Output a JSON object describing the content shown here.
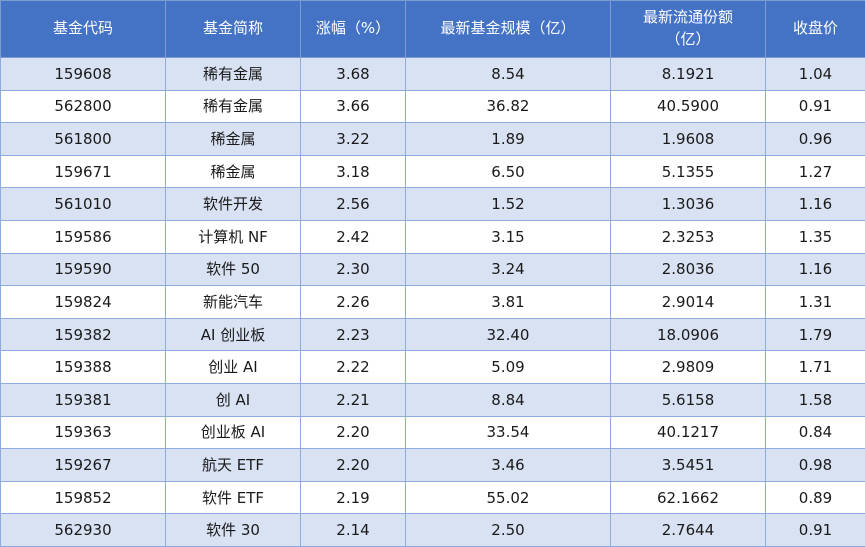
{
  "chart_data": {
    "type": "table",
    "columns": [
      "基金代码",
      "基金简称",
      "涨幅（%）",
      "最新基金规模（亿）",
      "最新流通份额\n（亿）",
      "收盘价"
    ],
    "rows": [
      [
        "159608",
        "稀有金属",
        "3.68",
        "8.54",
        "8.1921",
        "1.04"
      ],
      [
        "562800",
        "稀有金属",
        "3.66",
        "36.82",
        "40.5900",
        "0.91"
      ],
      [
        "561800",
        "稀金属",
        "3.22",
        "1.89",
        "1.9608",
        "0.96"
      ],
      [
        "159671",
        "稀金属",
        "3.18",
        "6.50",
        "5.1355",
        "1.27"
      ],
      [
        "561010",
        "软件开发",
        "2.56",
        "1.52",
        "1.3036",
        "1.16"
      ],
      [
        "159586",
        "计算机 NF",
        "2.42",
        "3.15",
        "2.3253",
        "1.35"
      ],
      [
        "159590",
        "软件 50",
        "2.30",
        "3.24",
        "2.8036",
        "1.16"
      ],
      [
        "159824",
        "新能汽车",
        "2.26",
        "3.81",
        "2.9014",
        "1.31"
      ],
      [
        "159382",
        "AI 创业板",
        "2.23",
        "32.40",
        "18.0906",
        "1.79"
      ],
      [
        "159388",
        "创业 AI",
        "2.22",
        "5.09",
        "2.9809",
        "1.71"
      ],
      [
        "159381",
        "创 AI",
        "2.21",
        "8.84",
        "5.6158",
        "1.58"
      ],
      [
        "159363",
        "创业板 AI",
        "2.20",
        "33.54",
        "40.1217",
        "0.84"
      ],
      [
        "159267",
        "航天 ETF",
        "2.20",
        "3.46",
        "3.5451",
        "0.98"
      ],
      [
        "159852",
        "软件 ETF",
        "2.19",
        "55.02",
        "62.1662",
        "0.89"
      ],
      [
        "562930",
        "软件 30",
        "2.14",
        "2.50",
        "2.7644",
        "0.91"
      ]
    ]
  },
  "colors": {
    "header_bg": "#4472C4",
    "header_text": "#FFFFFF",
    "row_alt_bg": "#D9E2F3",
    "row_bg": "#FFFFFF",
    "grid_border": "#8FAADC",
    "outer_border": "#7F9CCF"
  }
}
